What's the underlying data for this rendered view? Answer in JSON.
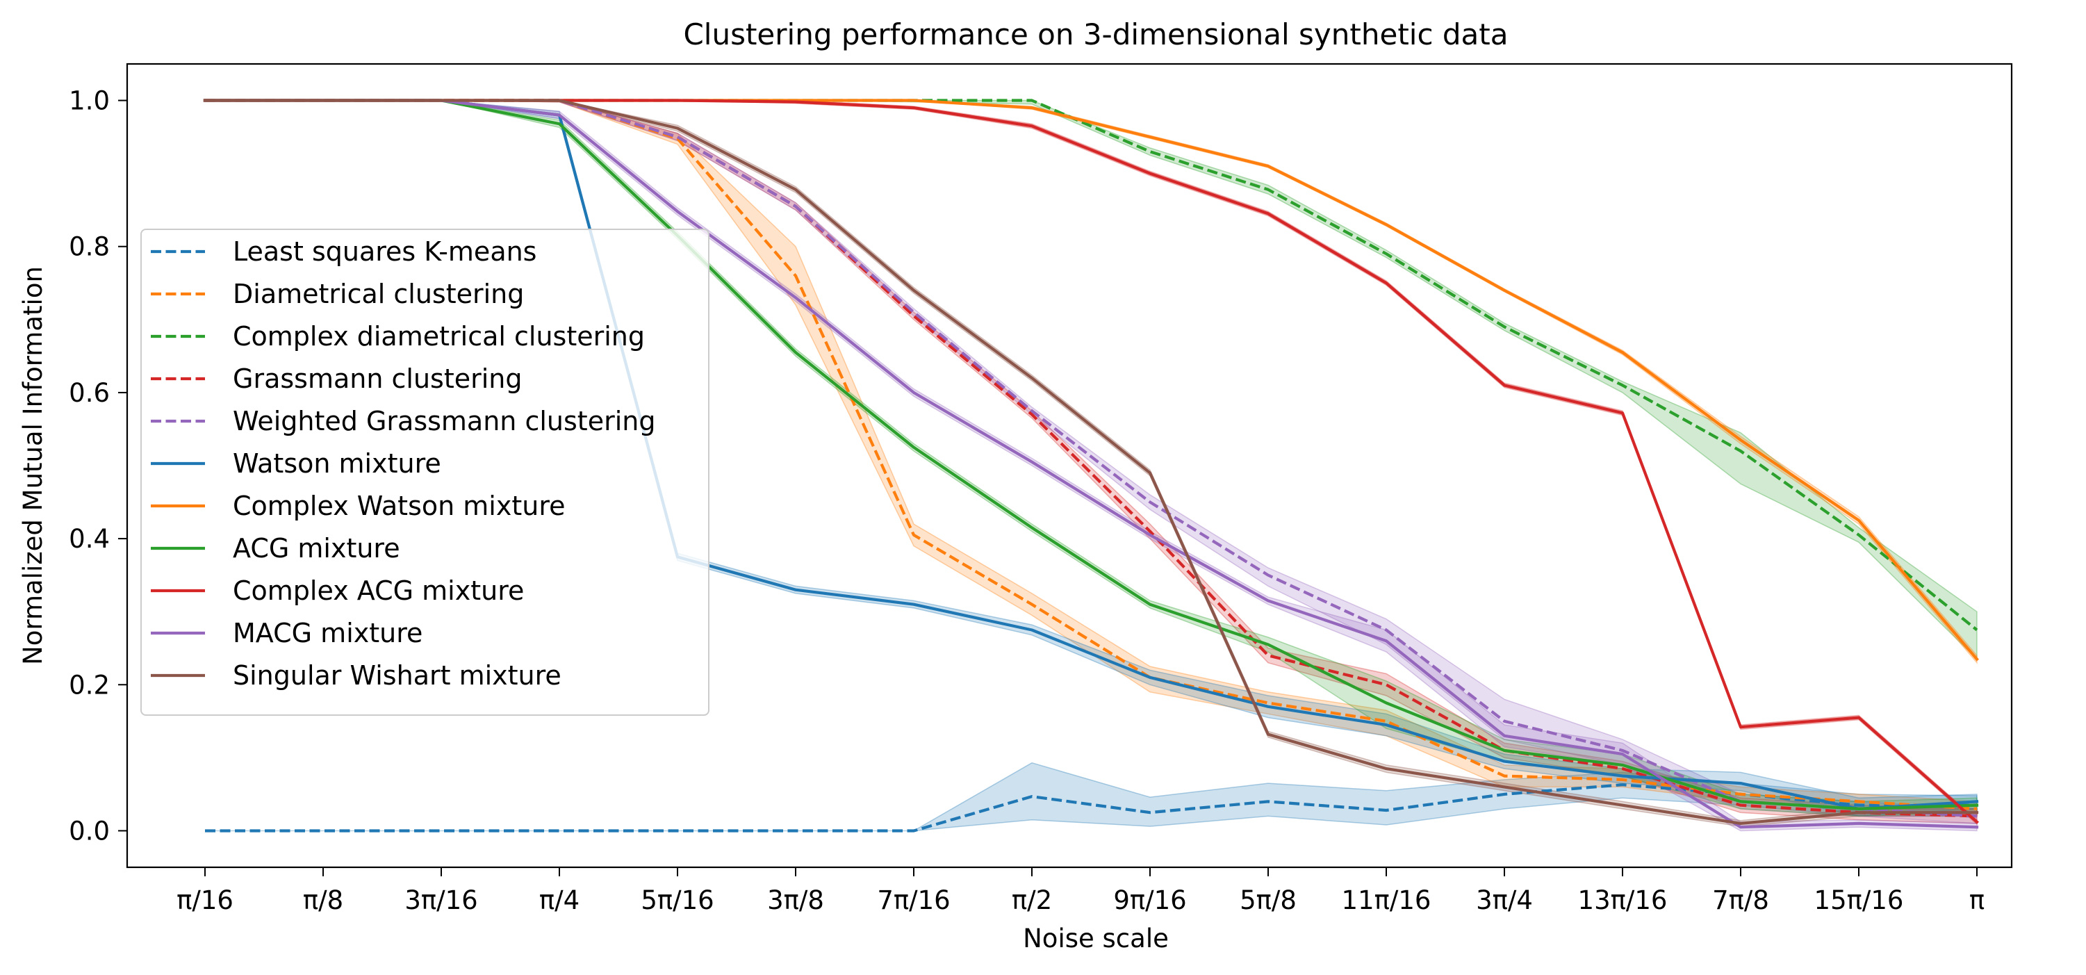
{
  "chart_data": {
    "type": "line",
    "title": "Clustering performance on 3-dimensional synthetic data",
    "xlabel": "Noise scale",
    "ylabel": "Normalized Mutual Information",
    "categories": [
      "π/16",
      "π/8",
      "3π/16",
      "π/4",
      "5π/16",
      "3π/8",
      "7π/16",
      "π/2",
      "9π/16",
      "5π/8",
      "11π/16",
      "3π/4",
      "13π/16",
      "7π/8",
      "15π/16",
      "π"
    ],
    "yticks": [
      "0.0",
      "0.2",
      "0.4",
      "0.6",
      "0.8",
      "1.0"
    ],
    "ylim": [
      -0.05,
      1.05
    ],
    "grid": false,
    "legend_position": "center-left",
    "series": [
      {
        "name": "Least squares K-means",
        "color": "#1f77b4",
        "dash": true,
        "values": [
          0.0,
          0.0,
          0.0,
          0.0,
          0.0,
          0.0,
          0.0,
          0.047,
          0.025,
          0.04,
          0.028,
          0.05,
          0.063,
          0.05,
          0.035,
          0.035
        ],
        "band": [
          [
            0.0,
            0.0
          ],
          [
            0.0,
            0.0
          ],
          [
            0.0,
            0.0
          ],
          [
            0.0,
            0.0
          ],
          [
            0.0,
            0.0
          ],
          [
            0.0,
            0.0
          ],
          [
            0.0,
            0.0
          ],
          [
            0.015,
            0.093
          ],
          [
            0.006,
            0.046
          ],
          [
            0.02,
            0.065
          ],
          [
            0.008,
            0.055
          ],
          [
            0.03,
            0.07
          ],
          [
            0.045,
            0.08
          ],
          [
            0.035,
            0.065
          ],
          [
            0.02,
            0.05
          ],
          [
            0.02,
            0.048
          ]
        ]
      },
      {
        "name": "Diametrical clustering",
        "color": "#ff7f0e",
        "dash": true,
        "values": [
          1.0,
          1.0,
          1.0,
          1.0,
          0.948,
          0.76,
          0.405,
          0.31,
          0.21,
          0.175,
          0.15,
          0.075,
          0.07,
          0.05,
          0.04,
          0.03
        ],
        "band": [
          [
            1.0,
            1.0
          ],
          [
            1.0,
            1.0
          ],
          [
            1.0,
            1.0
          ],
          [
            0.998,
            1.0
          ],
          [
            0.94,
            0.955
          ],
          [
            0.72,
            0.8
          ],
          [
            0.39,
            0.42
          ],
          [
            0.295,
            0.325
          ],
          [
            0.19,
            0.225
          ],
          [
            0.16,
            0.19
          ],
          [
            0.13,
            0.165
          ],
          [
            0.06,
            0.09
          ],
          [
            0.06,
            0.085
          ],
          [
            0.04,
            0.06
          ],
          [
            0.03,
            0.05
          ],
          [
            0.02,
            0.04
          ]
        ]
      },
      {
        "name": "Complex diametrical clustering",
        "color": "#2ca02c",
        "dash": true,
        "values": [
          1.0,
          1.0,
          1.0,
          1.0,
          1.0,
          1.0,
          1.0,
          1.0,
          0.93,
          0.878,
          0.79,
          0.69,
          0.61,
          0.52,
          0.405,
          0.275
        ],
        "band": [
          [
            1.0,
            1.0
          ],
          [
            1.0,
            1.0
          ],
          [
            1.0,
            1.0
          ],
          [
            1.0,
            1.0
          ],
          [
            1.0,
            1.0
          ],
          [
            1.0,
            1.0
          ],
          [
            0.998,
            1.0
          ],
          [
            0.995,
            1.0
          ],
          [
            0.925,
            0.935
          ],
          [
            0.872,
            0.884
          ],
          [
            0.785,
            0.795
          ],
          [
            0.685,
            0.695
          ],
          [
            0.6,
            0.615
          ],
          [
            0.475,
            0.545
          ],
          [
            0.395,
            0.415
          ],
          [
            0.235,
            0.3
          ]
        ]
      },
      {
        "name": "Grassmann clustering",
        "color": "#d62728",
        "dash": true,
        "values": [
          1.0,
          1.0,
          1.0,
          1.0,
          0.95,
          0.855,
          0.705,
          0.57,
          0.41,
          0.24,
          0.2,
          0.11,
          0.085,
          0.035,
          0.025,
          0.02
        ],
        "band": [
          [
            1.0,
            1.0
          ],
          [
            1.0,
            1.0
          ],
          [
            1.0,
            1.0
          ],
          [
            0.998,
            1.0
          ],
          [
            0.945,
            0.955
          ],
          [
            0.85,
            0.86
          ],
          [
            0.7,
            0.71
          ],
          [
            0.565,
            0.575
          ],
          [
            0.4,
            0.42
          ],
          [
            0.23,
            0.25
          ],
          [
            0.185,
            0.215
          ],
          [
            0.1,
            0.12
          ],
          [
            0.075,
            0.095
          ],
          [
            0.025,
            0.045
          ],
          [
            0.015,
            0.035
          ],
          [
            0.01,
            0.03
          ]
        ]
      },
      {
        "name": "Weighted Grassmann clustering",
        "color": "#9467bd",
        "dash": true,
        "values": [
          1.0,
          1.0,
          1.0,
          1.0,
          0.95,
          0.855,
          0.71,
          0.575,
          0.45,
          0.35,
          0.275,
          0.15,
          0.11,
          0.04,
          0.03,
          0.02
        ],
        "band": [
          [
            1.0,
            1.0
          ],
          [
            1.0,
            1.0
          ],
          [
            1.0,
            1.0
          ],
          [
            0.998,
            1.0
          ],
          [
            0.945,
            0.955
          ],
          [
            0.85,
            0.86
          ],
          [
            0.705,
            0.715
          ],
          [
            0.57,
            0.58
          ],
          [
            0.44,
            0.46
          ],
          [
            0.335,
            0.36
          ],
          [
            0.255,
            0.29
          ],
          [
            0.125,
            0.18
          ],
          [
            0.09,
            0.125
          ],
          [
            0.03,
            0.05
          ],
          [
            0.02,
            0.04
          ],
          [
            0.01,
            0.03
          ]
        ]
      },
      {
        "name": "Watson mixture",
        "color": "#1f77b4",
        "dash": false,
        "values": [
          1.0,
          1.0,
          1.0,
          0.98,
          0.375,
          0.33,
          0.31,
          0.275,
          0.21,
          0.17,
          0.145,
          0.095,
          0.075,
          0.065,
          0.03,
          0.04
        ],
        "band": [
          [
            1.0,
            1.0
          ],
          [
            1.0,
            1.0
          ],
          [
            1.0,
            1.0
          ],
          [
            0.975,
            0.985
          ],
          [
            0.37,
            0.38
          ],
          [
            0.325,
            0.335
          ],
          [
            0.305,
            0.315
          ],
          [
            0.268,
            0.282
          ],
          [
            0.2,
            0.22
          ],
          [
            0.155,
            0.185
          ],
          [
            0.13,
            0.16
          ],
          [
            0.085,
            0.105
          ],
          [
            0.065,
            0.085
          ],
          [
            0.055,
            0.08
          ],
          [
            0.02,
            0.045
          ],
          [
            0.03,
            0.05
          ]
        ]
      },
      {
        "name": "Complex Watson mixture",
        "color": "#ff7f0e",
        "dash": false,
        "values": [
          1.0,
          1.0,
          1.0,
          1.0,
          1.0,
          1.0,
          1.0,
          0.99,
          0.95,
          0.91,
          0.83,
          0.74,
          0.655,
          0.535,
          0.425,
          0.235
        ],
        "band": [
          [
            1.0,
            1.0
          ],
          [
            1.0,
            1.0
          ],
          [
            1.0,
            1.0
          ],
          [
            1.0,
            1.0
          ],
          [
            1.0,
            1.0
          ],
          [
            1.0,
            1.0
          ],
          [
            1.0,
            1.0
          ],
          [
            0.988,
            0.992
          ],
          [
            0.948,
            0.952
          ],
          [
            0.908,
            0.912
          ],
          [
            0.828,
            0.832
          ],
          [
            0.738,
            0.742
          ],
          [
            0.652,
            0.658
          ],
          [
            0.53,
            0.54
          ],
          [
            0.42,
            0.43
          ],
          [
            0.23,
            0.24
          ]
        ]
      },
      {
        "name": "ACG mixture",
        "color": "#2ca02c",
        "dash": false,
        "values": [
          1.0,
          1.0,
          1.0,
          0.968,
          0.815,
          0.655,
          0.525,
          0.415,
          0.31,
          0.255,
          0.175,
          0.11,
          0.09,
          0.04,
          0.03,
          0.035
        ],
        "band": [
          [
            1.0,
            1.0
          ],
          [
            1.0,
            1.0
          ],
          [
            1.0,
            1.0
          ],
          [
            0.963,
            0.973
          ],
          [
            0.81,
            0.82
          ],
          [
            0.65,
            0.66
          ],
          [
            0.52,
            0.53
          ],
          [
            0.41,
            0.42
          ],
          [
            0.305,
            0.315
          ],
          [
            0.245,
            0.265
          ],
          [
            0.14,
            0.205
          ],
          [
            0.095,
            0.125
          ],
          [
            0.075,
            0.105
          ],
          [
            0.03,
            0.05
          ],
          [
            0.02,
            0.04
          ],
          [
            0.025,
            0.045
          ]
        ]
      },
      {
        "name": "Complex ACG mixture",
        "color": "#d62728",
        "dash": false,
        "values": [
          1.0,
          1.0,
          1.0,
          1.0,
          1.0,
          0.998,
          0.99,
          0.965,
          0.9,
          0.845,
          0.75,
          0.61,
          0.572,
          0.142,
          0.155,
          0.012
        ],
        "band": [
          [
            1.0,
            1.0
          ],
          [
            1.0,
            1.0
          ],
          [
            1.0,
            1.0
          ],
          [
            1.0,
            1.0
          ],
          [
            1.0,
            1.0
          ],
          [
            0.996,
            1.0
          ],
          [
            0.988,
            0.992
          ],
          [
            0.962,
            0.968
          ],
          [
            0.897,
            0.903
          ],
          [
            0.842,
            0.848
          ],
          [
            0.747,
            0.753
          ],
          [
            0.607,
            0.613
          ],
          [
            0.569,
            0.575
          ],
          [
            0.139,
            0.145
          ],
          [
            0.152,
            0.158
          ],
          [
            0.009,
            0.015
          ]
        ]
      },
      {
        "name": "MACG mixture",
        "color": "#9467bd",
        "dash": false,
        "values": [
          1.0,
          1.0,
          1.0,
          0.98,
          0.848,
          0.73,
          0.6,
          0.505,
          0.405,
          0.315,
          0.26,
          0.13,
          0.105,
          0.005,
          0.01,
          0.005
        ],
        "band": [
          [
            1.0,
            1.0
          ],
          [
            1.0,
            1.0
          ],
          [
            1.0,
            1.0
          ],
          [
            0.975,
            0.985
          ],
          [
            0.843,
            0.853
          ],
          [
            0.725,
            0.735
          ],
          [
            0.595,
            0.605
          ],
          [
            0.5,
            0.51
          ],
          [
            0.4,
            0.41
          ],
          [
            0.31,
            0.32
          ],
          [
            0.245,
            0.275
          ],
          [
            0.115,
            0.145
          ],
          [
            0.09,
            0.12
          ],
          [
            0.0,
            0.012
          ],
          [
            0.005,
            0.015
          ],
          [
            0.0,
            0.01
          ]
        ]
      },
      {
        "name": "Singular Wishart mixture",
        "color": "#8c564b",
        "dash": false,
        "values": [
          1.0,
          1.0,
          1.0,
          1.0,
          0.962,
          0.878,
          0.74,
          0.62,
          0.49,
          0.132,
          0.085,
          0.06,
          0.035,
          0.01,
          0.025,
          0.025
        ],
        "band": [
          [
            1.0,
            1.0
          ],
          [
            1.0,
            1.0
          ],
          [
            1.0,
            1.0
          ],
          [
            0.998,
            1.0
          ],
          [
            0.958,
            0.966
          ],
          [
            0.874,
            0.882
          ],
          [
            0.736,
            0.744
          ],
          [
            0.616,
            0.624
          ],
          [
            0.486,
            0.494
          ],
          [
            0.128,
            0.136
          ],
          [
            0.08,
            0.09
          ],
          [
            0.055,
            0.065
          ],
          [
            0.03,
            0.04
          ],
          [
            0.006,
            0.014
          ],
          [
            0.02,
            0.03
          ],
          [
            0.02,
            0.03
          ]
        ]
      }
    ]
  }
}
